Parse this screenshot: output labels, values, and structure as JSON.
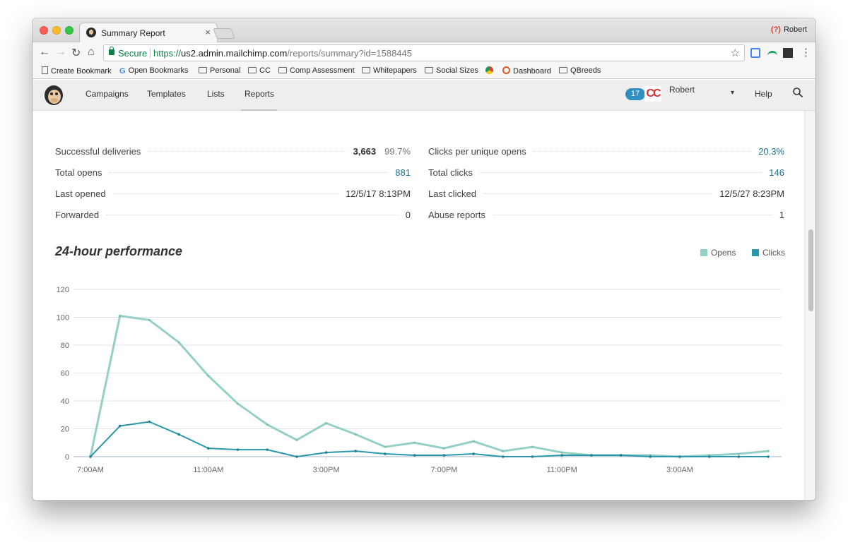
{
  "browser": {
    "tab_title": "Summary Report",
    "tab_close": "×",
    "profile": "Robert",
    "url_scheme": "https://",
    "url_host": "us2.admin.mailchimp.com",
    "url_path": "/reports/summary?id=1588445",
    "secure_label": "Secure",
    "bookmarks": [
      "Create Bookmark",
      "Open Bookmarks",
      "Personal",
      "CC",
      "Comp Assessment",
      "Whitepapers",
      "Social Sizes",
      "Dashboard",
      "QBreeds"
    ]
  },
  "nav": {
    "items": [
      "Campaigns",
      "Templates",
      "Lists",
      "Reports"
    ],
    "active": "Reports",
    "badge_count": "17",
    "user": "Robert",
    "help": "Help"
  },
  "stats": {
    "left": [
      {
        "label": "Successful deliveries",
        "value": "3,663",
        "pct": "99.7%"
      },
      {
        "label": "Total opens",
        "value": "881"
      },
      {
        "label": "Last opened",
        "value": "12/5/17 8:13PM"
      },
      {
        "label": "Forwarded",
        "value": "0"
      }
    ],
    "right": [
      {
        "label": "Clicks per unique opens",
        "value": "20.3%"
      },
      {
        "label": "Total clicks",
        "value": "146"
      },
      {
        "label": "Last clicked",
        "value": "12/5/27 8:23PM"
      },
      {
        "label": "Abuse reports",
        "value": "1"
      }
    ]
  },
  "performance": {
    "title": "24-hour performance"
  },
  "colors": {
    "opens": "#95d0c6",
    "clicks": "#2a98ac",
    "link": "#1d6b8f"
  },
  "chart_data": {
    "type": "line",
    "x": [
      "7:00AM",
      "8:00AM",
      "9:00AM",
      "10:00AM",
      "11:00AM",
      "12:00PM",
      "1:00PM",
      "2:00PM",
      "3:00PM",
      "4:00PM",
      "5:00PM",
      "6:00PM",
      "7:00PM",
      "8:00PM",
      "9:00PM",
      "10:00PM",
      "11:00PM",
      "12:00AM",
      "1:00AM",
      "2:00AM",
      "3:00AM",
      "4:00AM",
      "5:00AM",
      "6:00AM"
    ],
    "tick_labels": [
      "7:00AM",
      "11:00AM",
      "3:00PM",
      "7:00PM",
      "11:00PM",
      "3:00AM"
    ],
    "y_ticks": [
      0,
      20,
      40,
      60,
      80,
      100,
      120
    ],
    "ylim": [
      0,
      120
    ],
    "series": [
      {
        "name": "Opens",
        "values": [
          0,
          101,
          98,
          82,
          58,
          38,
          23,
          12,
          24,
          16,
          7,
          10,
          6,
          11,
          4,
          7,
          3,
          1,
          1,
          1,
          0,
          1,
          2,
          4
        ]
      },
      {
        "name": "Clicks",
        "values": [
          0,
          22,
          25,
          16,
          6,
          5,
          5,
          0,
          3,
          4,
          2,
          1,
          1,
          2,
          0,
          0,
          1,
          1,
          1,
          0,
          0,
          0,
          0,
          0
        ]
      }
    ],
    "legend_position": "top-right",
    "grid": true
  }
}
